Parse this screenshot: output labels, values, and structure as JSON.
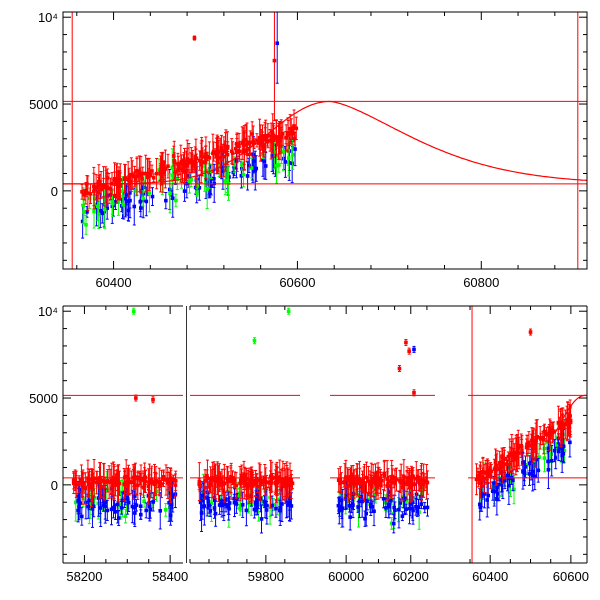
{
  "chart_data": [
    {
      "type": "scatter",
      "title": "",
      "xlabel": "",
      "ylabel": "",
      "xlim": [
        60345,
        60915
      ],
      "ylim": [
        -4500,
        10300
      ],
      "x_ticks": [
        "60400",
        "60600",
        "60800"
      ],
      "x_tick_values": [
        60400,
        60600,
        60800
      ],
      "y_ticks": [
        "0",
        "5000"
      ],
      "y_tick_values": [
        0,
        5000
      ],
      "y_top_label": "10⁴",
      "y_top_value": 10000,
      "hlines": [
        5150,
        400
      ],
      "vlines": [
        60355,
        60905
      ],
      "model_curve": {
        "start": 60345,
        "peak_x": 60635,
        "peak_y": 5150,
        "base": 400,
        "end": 60915,
        "color": "#ff0000"
      },
      "series": [
        {
          "color": "#0000ff",
          "x_range": [
            60365,
            60600
          ],
          "y_range": [
            -3800,
            9300
          ],
          "count": 90
        },
        {
          "color": "#00ff00",
          "x_range": [
            60365,
            60600
          ],
          "y_range": [
            -4000,
            6000
          ],
          "count": 55
        },
        {
          "color": "#ff0000",
          "x_range": [
            60365,
            60600
          ],
          "y_range": [
            -1000,
            8800
          ],
          "count": 210
        }
      ]
    },
    {
      "type": "scatter",
      "title": "",
      "xlabel": "",
      "ylabel": "",
      "segments": [
        {
          "xlim": [
            58150,
            58430
          ],
          "ticks": [
            "58200",
            "58400"
          ],
          "tick_values": [
            58200,
            58400
          ]
        },
        {
          "xlim": [
            59600,
            59890
          ],
          "ticks": [
            "59800"
          ],
          "tick_values": [
            59800
          ]
        },
        {
          "xlim": [
            59950,
            60275
          ],
          "ticks": [
            "60000",
            "60200"
          ],
          "tick_values": [
            60000,
            60200
          ]
        },
        {
          "xlim": [
            60345,
            60640
          ],
          "ticks": [
            "60400",
            "60600"
          ],
          "tick_values": [
            60400,
            60600
          ]
        }
      ],
      "ylim": [
        -4500,
        10300
      ],
      "y_ticks": [
        "0",
        "5000"
      ],
      "y_tick_values": [
        0,
        5000
      ],
      "y_top_label": "10⁴",
      "y_top_value": 10000,
      "hlines": [
        5150,
        400
      ],
      "vlines": [
        60355
      ],
      "series": [
        {
          "color": "#0000ff",
          "count_per_segment": 55,
          "y_range": [
            -3800,
            8600
          ]
        },
        {
          "color": "#00ff00",
          "count_per_segment": 30,
          "y_range": [
            -4200,
            10000
          ]
        },
        {
          "color": "#ff0000",
          "count_per_segment": 110,
          "y_range": [
            -1200,
            8800
          ]
        }
      ],
      "outliers": [
        {
          "color": "#00ff00",
          "x": 58315,
          "y": 10000
        },
        {
          "color": "#00ff00",
          "x": 59860,
          "y": 10000
        },
        {
          "color": "#00ff00",
          "x": 59770,
          "y": 8300
        },
        {
          "color": "#ff0000",
          "x": 60185,
          "y": 8200
        },
        {
          "color": "#ff0000",
          "x": 60195,
          "y": 7700
        },
        {
          "color": "#ff0000",
          "x": 60165,
          "y": 6700
        },
        {
          "color": "#ff0000",
          "x": 60210,
          "y": 5300
        },
        {
          "color": "#0000ff",
          "x": 60210,
          "y": 7800
        },
        {
          "color": "#ff0000",
          "x": 60500,
          "y": 8800
        },
        {
          "color": "#ff0000",
          "x": 58320,
          "y": 5000
        },
        {
          "color": "#ff0000",
          "x": 58360,
          "y": 4900
        }
      ]
    }
  ]
}
